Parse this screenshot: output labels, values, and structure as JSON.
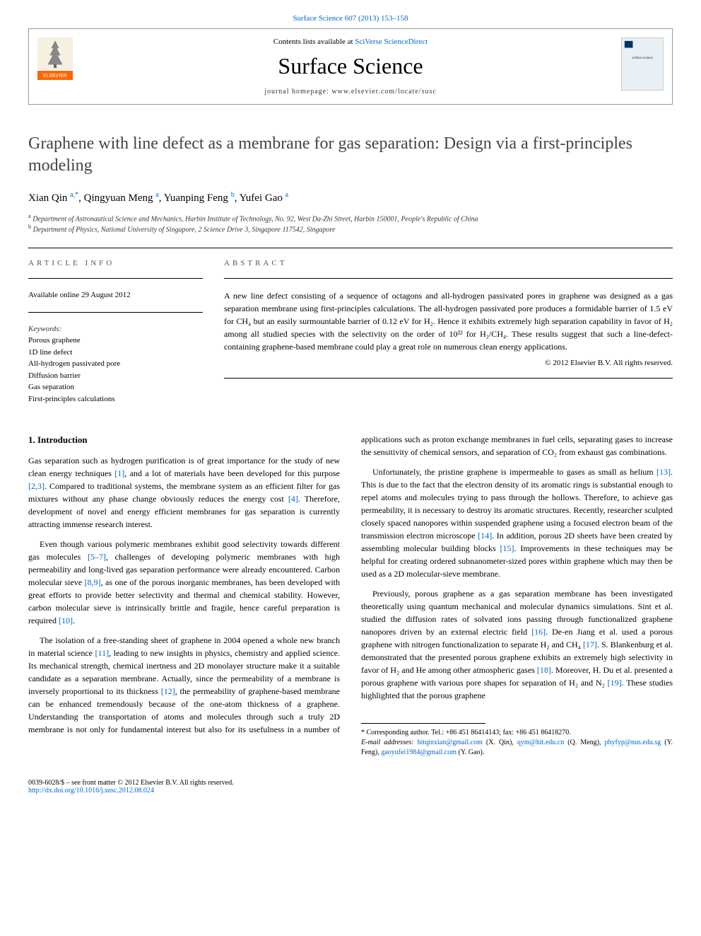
{
  "header": {
    "journal_ref_link": "Surface Science 607 (2013) 153–158",
    "contents_text": "Contents lists available at ",
    "contents_link": "SciVerse ScienceDirect",
    "journal_title": "Surface Science",
    "homepage_text": "journal homepage: www.elsevier.com/locate/susc",
    "publisher_logo_color": "#ff6600",
    "publisher_name": "ELSEVIER",
    "cover_bg": "#e8f0f5",
    "cover_accent": "#003366",
    "cover_label": "surface science"
  },
  "article": {
    "title": "Graphene with line defect as a membrane for gas separation: Design via a first-principles modeling",
    "authors": [
      {
        "name": "Xian Qin",
        "affil": "a,",
        "corr": "*"
      },
      {
        "name": "Qingyuan Meng",
        "affil": "a"
      },
      {
        "name": "Yuanping Feng",
        "affil": "b"
      },
      {
        "name": "Yufei Gao",
        "affil": "a"
      }
    ],
    "affiliations": [
      {
        "mark": "a",
        "text": "Department of Astronautical Science and Mechanics, Harbin Institute of Technology, No. 92, West Da-Zhi Street, Harbin 150001, People's Republic of China"
      },
      {
        "mark": "b",
        "text": "Department of Physics, National University of Singapore, 2 Science Drive 3, Singapore 117542, Singapore"
      }
    ]
  },
  "info": {
    "header": "ARTICLE INFO",
    "available": "Available online 29 August 2012",
    "keywords_label": "Keywords:",
    "keywords": [
      "Porous graphene",
      "1D line defect",
      "All-hydrogen passivated pore",
      "Diffusion barrier",
      "Gas separation",
      "First-principles calculations"
    ]
  },
  "abstract": {
    "header": "ABSTRACT",
    "text": "A new line defect consisting of a sequence of octagons and all-hydrogen passivated pores in graphene was designed as a gas separation membrane using first-principles calculations. The all-hydrogen passivated pore produces a formidable barrier of 1.5 eV for CH₄ but an easily surmountable barrier of 0.12 eV for H₂. Hence it exhibits extremely high separation capability in favor of H₂ among all studied species with the selectivity on the order of 10²² for H₂/CH₄. These results suggest that such a line-defect-containing graphene-based membrane could play a great role on numerous clean energy applications.",
    "copyright": "© 2012 Elsevier B.V. All rights reserved."
  },
  "body": {
    "section_title": "1. Introduction",
    "paragraphs": [
      "Gas separation such as hydrogen purification is of great importance for the study of new clean energy techniques [1], and a lot of materials have been developed for this purpose [2,3]. Compared to traditional systems, the membrane system as an efficient filter for gas mixtures without any phase change obviously reduces the energy cost [4]. Therefore, development of novel and energy efficient membranes for gas separation is currently attracting immense research interest.",
      "Even though various polymeric membranes exhibit good selectivity towards different gas molecules [5–7], challenges of developing polymeric membranes with high permeability and long-lived gas separation performance were already encountered. Carbon molecular sieve [8,9], as one of the porous inorganic membranes, has been developed with great efforts to provide better selectivity and thermal and chemical stability. However, carbon molecular sieve is intrinsically brittle and fragile, hence careful preparation is required [10].",
      "The isolation of a free-standing sheet of graphene in 2004 opened a whole new branch in material science [11], leading to new insights in physics, chemistry and applied science. Its mechanical strength, chemical inertness and 2D monolayer structure make it a suitable candidate as a separation membrane. Actually, since the permeability of a membrane is inversely proportional to its thickness [12], the permeability of graphene-based membrane can be enhanced tremendously because of the one-atom thickness of a graphene. Understanding the transportation of atoms and molecules through such a truly 2D membrane is not only for fundamental interest but also for its usefulness in a number of applications such as proton exchange membranes in fuel cells, separating gases to increase the sensitivity of chemical sensors, and separation of CO₂ from exhaust gas combinations.",
      "Unfortunately, the pristine graphene is impermeable to gases as small as helium [13]. This is due to the fact that the electron density of its aromatic rings is substantial enough to repel atoms and molecules trying to pass through the hollows. Therefore, to achieve gas permeability, it is necessary to destroy its aromatic structures. Recently, researcher sculpted closely spaced nanopores within suspended graphene using a focused electron beam of the transmission electron microscope [14]. In addition, porous 2D sheets have been created by assembling molecular building blocks [15]. Improvements in these techniques may be helpful for creating ordered subnanometer-sized pores within graphene which may then be used as a 2D molecular-sieve membrane.",
      "Previously, porous graphene as a gas separation membrane has been investigated theoretically using quantum mechanical and molecular dynamics simulations. Sint et al. studied the diffusion rates of solvated ions passing through functionalized graphene nanopores driven by an external electric field [16]. De-en Jiang et al. used a porous graphene with nitrogen functionalization to separate H₂ and CH₄ [17]. S. Blankenburg et al. demonstrated that the presented porous graphene exhibits an extremely high selectivity in favor of H₂ and He among other atmospheric gases [18]. Moreover, H. Du et al. presented a porous graphene with various pore shapes for separation of H₂ and N₂ [19]. These studies highlighted that the porous graphene"
    ]
  },
  "footnote": {
    "corr_label": "* Corresponding author. Tel.: +86 451 86414143; fax: +86 451 86418270.",
    "email_label": "E-mail addresses:",
    "emails": [
      {
        "addr": "hitqinxian@gmail.com",
        "person": "(X. Qin)"
      },
      {
        "addr": "qym@hit.edu.cn",
        "person": "(Q. Meng)"
      },
      {
        "addr": "phyfyp@nus.edu.sg",
        "person": "(Y. Feng)"
      },
      {
        "addr": "gaoyufei1984@gmail.com",
        "person": "(Y. Gao)"
      }
    ]
  },
  "footer": {
    "issn": "0039-6028/$ – see front matter © 2012 Elsevier B.V. All rights reserved.",
    "doi": "http://dx.doi.org/10.1016/j.susc.2012.08.024"
  },
  "colors": {
    "link": "#0066cc",
    "text": "#000000",
    "muted": "#555555"
  }
}
